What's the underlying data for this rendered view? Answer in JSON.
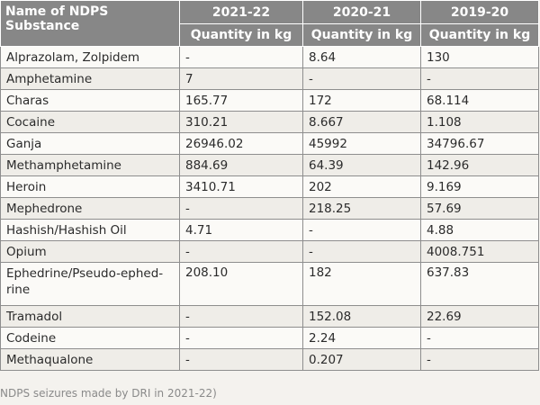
{
  "table": {
    "header": {
      "name_label": "Name of NDPS Substance",
      "years": [
        "2021-22",
        "2020-21",
        "2019-20"
      ],
      "unit_label": "Quantity in kg"
    },
    "rows": [
      {
        "name": "Alprazolam, Zolpidem",
        "values": [
          "-",
          "8.64",
          "130"
        ]
      },
      {
        "name": "Amphetamine",
        "values": [
          "7",
          "-",
          "-"
        ]
      },
      {
        "name": "Charas",
        "values": [
          "165.77",
          "172",
          "68.114"
        ]
      },
      {
        "name": "Cocaine",
        "values": [
          "310.21",
          "8.667",
          "1.108"
        ]
      },
      {
        "name": "Ganja",
        "values": [
          "26946.02",
          "45992",
          "34796.67"
        ]
      },
      {
        "name": "Methamphetamine",
        "values": [
          "884.69",
          "64.39",
          "142.96"
        ]
      },
      {
        "name": "Heroin",
        "values": [
          "3410.71",
          "202",
          "9.169"
        ]
      },
      {
        "name": "Mephedrone",
        "values": [
          "-",
          "218.25",
          "57.69"
        ]
      },
      {
        "name": "Hashish/Hashish Oil",
        "values": [
          "4.71",
          "-",
          "4.88"
        ]
      },
      {
        "name": "Opium",
        "values": [
          "-",
          "-",
          "4008.751"
        ]
      },
      {
        "name": "Ephedrine/Pseudo-ephed-rine",
        "values": [
          "208.10",
          "182",
          "637.83"
        ]
      },
      {
        "name": "Tramadol",
        "values": [
          "-",
          "152.08",
          "22.69"
        ]
      },
      {
        "name": "Codeine",
        "values": [
          "-",
          "2.24",
          "-"
        ]
      },
      {
        "name": "Methaqualone",
        "values": [
          "-",
          "0.207",
          "-"
        ]
      }
    ]
  },
  "caption": "NDPS seizures made by DRI in 2021-22)"
}
